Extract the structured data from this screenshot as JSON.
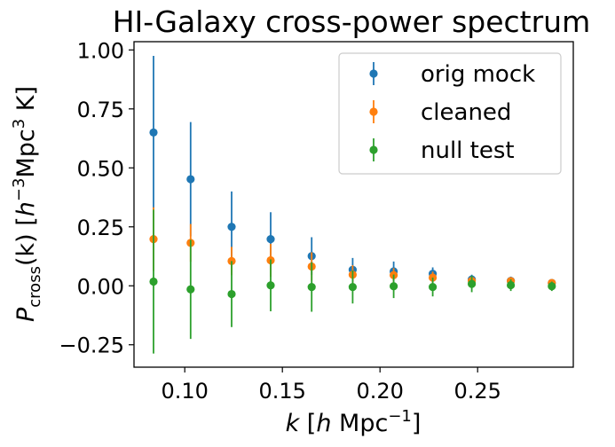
{
  "chart_data": {
    "type": "scatter",
    "title": "HI-Galaxy cross-power spectrum",
    "xlabel": {
      "main": "k",
      "open": " [",
      "h": "h",
      "unit": " Mpc",
      "sup": "−1",
      "close": "]"
    },
    "ylabel": {
      "main": "P",
      "sub": "cross",
      "arg": "(k)",
      "open": " [",
      "h": "h",
      "sup1": "−3",
      "unit": "Mpc",
      "sup2": "3",
      "tail": " K]"
    },
    "xlim": [
      0.074,
      0.299
    ],
    "ylim": [
      -0.345,
      1.035
    ],
    "xticks": [
      {
        "value": 0.1,
        "label": "0.10"
      },
      {
        "value": 0.15,
        "label": "0.15"
      },
      {
        "value": 0.2,
        "label": "0.20"
      },
      {
        "value": 0.25,
        "label": "0.25"
      }
    ],
    "yticks": [
      {
        "value": 1.0,
        "label": "1.00"
      },
      {
        "value": 0.75,
        "label": "0.75"
      },
      {
        "value": 0.5,
        "label": "0.50"
      },
      {
        "value": 0.25,
        "label": "0.25"
      },
      {
        "value": 0.0,
        "label": "0.00"
      },
      {
        "value": -0.25,
        "label": "−0.25"
      }
    ],
    "grid": false,
    "legend": "top-right",
    "x": [
      0.084,
      0.103,
      0.124,
      0.144,
      0.165,
      0.186,
      0.207,
      0.227,
      0.247,
      0.267,
      0.288
    ],
    "series": [
      {
        "name": "orig mock",
        "color": "#1f77b4",
        "y": [
          0.65,
          0.452,
          0.25,
          0.198,
          0.126,
          0.068,
          0.061,
          0.051,
          0.027,
          0.021,
          0.012
        ],
        "err": [
          0.325,
          0.242,
          0.15,
          0.114,
          0.08,
          0.05,
          0.042,
          0.027,
          0.02,
          0.018,
          0.017
        ]
      },
      {
        "name": "cleaned",
        "color": "#ff7f0e",
        "y": [
          0.198,
          0.182,
          0.105,
          0.108,
          0.082,
          0.047,
          0.045,
          0.035,
          0.021,
          0.02,
          0.012
        ],
        "err": [
          0.135,
          0.08,
          0.06,
          0.07,
          0.06,
          0.04,
          0.03,
          0.025,
          0.015,
          0.012,
          0.012
        ]
      },
      {
        "name": "null test",
        "color": "#2ca02c",
        "y": [
          0.018,
          -0.015,
          -0.035,
          0.002,
          -0.005,
          -0.005,
          -0.002,
          -0.005,
          0.008,
          0.003,
          -0.002
        ],
        "err": [
          0.305,
          0.21,
          0.14,
          0.11,
          0.105,
          0.07,
          0.05,
          0.04,
          0.035,
          0.025,
          0.02
        ]
      }
    ]
  }
}
